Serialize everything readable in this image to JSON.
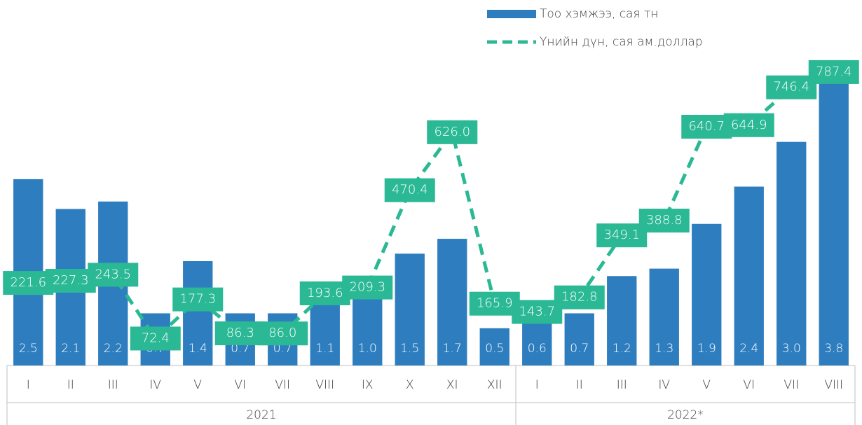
{
  "chart_data": {
    "type": "bar",
    "category_groups": [
      {
        "name": "2021",
        "categories": [
          "I",
          "II",
          "III",
          "IV",
          "V",
          "VI",
          "VII",
          "VIII",
          "IX",
          "X",
          "XI",
          "XII"
        ]
      },
      {
        "name": "2022*",
        "categories": [
          "I",
          "II",
          "III",
          "IV",
          "V",
          "VI",
          "VII",
          "VIII"
        ]
      }
    ],
    "series": [
      {
        "name": "Тоо хэмжээ, сая тн",
        "type": "bar",
        "color": "#2e7ebf",
        "values": [
          2.5,
          2.1,
          2.2,
          0.7,
          1.4,
          0.7,
          0.7,
          1.1,
          1.0,
          1.5,
          1.7,
          0.5,
          0.6,
          0.7,
          1.2,
          1.3,
          1.9,
          2.4,
          3.0,
          3.8
        ],
        "value_labels": [
          "2.5",
          "2.1",
          "2.2",
          "0.7",
          "1.4",
          "0.7",
          "0.7",
          "1.1",
          "1.0",
          "1.5",
          "1.7",
          "0.5",
          "0.6",
          "0.7",
          "1.2",
          "1.3",
          "1.9",
          "2.4",
          "3.0",
          "3.8"
        ]
      },
      {
        "name": "Үнийн дүн, сая ам.доллар",
        "type": "line",
        "axis": "y2",
        "color": "#2bb894",
        "dashed": true,
        "values": [
          221.6,
          227.3,
          243.5,
          72.4,
          177.3,
          86.3,
          86.0,
          193.6,
          209.3,
          470.4,
          626.0,
          165.9,
          143.7,
          182.8,
          349.1,
          388.8,
          640.7,
          644.9,
          746.4,
          787.4
        ],
        "value_labels": [
          "221.6",
          "227.3",
          "243.5",
          "72.4",
          "177.3",
          "86.3",
          "86.0",
          "193.6",
          "209.3",
          "470.4",
          "626.0",
          "165.9",
          "143.7",
          "182.8",
          "349.1",
          "388.8",
          "640.7",
          "644.9",
          "746.4",
          "787.4"
        ]
      }
    ],
    "ylim": [
      0,
      4.5
    ],
    "y2lim": [
      0,
      900
    ],
    "legend": "top-right"
  }
}
